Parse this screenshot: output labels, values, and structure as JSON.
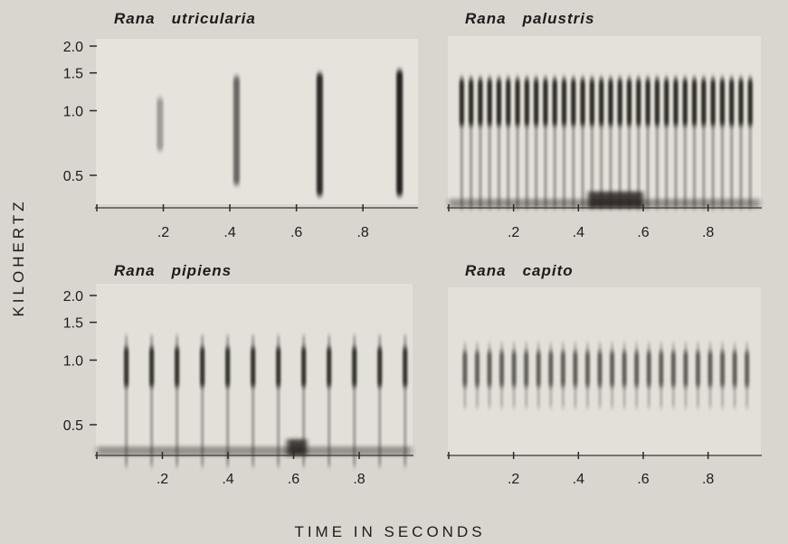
{
  "figure": {
    "ylabel": "KILOHERTZ",
    "xlabel": "TIME IN SECONDS"
  },
  "chart_data": [
    {
      "type": "heatmap",
      "title_word1": "Rana",
      "title_word2": "utricularia",
      "xlim": [
        0,
        0.96
      ],
      "ylim": [
        0.3,
        2.2
      ],
      "x_ticks": [
        0.2,
        0.4,
        0.6,
        0.8
      ],
      "x_tick_labels": [
        ".2",
        ".4",
        ".6",
        ".8"
      ],
      "y_ticks": [
        0.5,
        1.0,
        1.5,
        2.0
      ],
      "y_tick_labels": [
        "0.5",
        "1.0",
        "1.5",
        "2.0"
      ],
      "pulses": [
        {
          "t": 0.19,
          "f_low": 0.65,
          "f_high": 1.15,
          "intensity": 0.35
        },
        {
          "t": 0.42,
          "f_low": 0.45,
          "f_high": 1.45,
          "intensity": 0.6
        },
        {
          "t": 0.67,
          "f_low": 0.4,
          "f_high": 1.5,
          "intensity": 0.9
        },
        {
          "t": 0.91,
          "f_low": 0.4,
          "f_high": 1.55,
          "intensity": 0.95
        }
      ]
    },
    {
      "type": "heatmap",
      "title_word1": "Rana",
      "title_word2": "palustris",
      "xlim": [
        0,
        0.96
      ],
      "ylim": [
        0.3,
        2.2
      ],
      "x_ticks": [
        0.2,
        0.4,
        0.6,
        0.8
      ],
      "x_tick_labels": [
        ".2",
        ".4",
        ".6",
        ".8"
      ],
      "y_ticks": [],
      "y_tick_labels": [],
      "pulse_train": {
        "start": 0.04,
        "end": 0.93,
        "count": 32,
        "f_low": 0.35,
        "f_high": 1.45,
        "band_low": 0.85,
        "band_high": 1.4,
        "intensity": 0.85
      },
      "noise_floor": {
        "from": 0.0,
        "to": 0.96,
        "blob_from": 0.43,
        "blob_to": 0.6
      }
    },
    {
      "type": "heatmap",
      "title_word1": "Rana",
      "title_word2": "pipiens",
      "xlim": [
        0,
        0.96
      ],
      "ylim": [
        0.3,
        2.2
      ],
      "x_ticks": [
        0.2,
        0.4,
        0.6,
        0.8
      ],
      "x_tick_labels": [
        ".2",
        ".4",
        ".6",
        ".8"
      ],
      "y_ticks": [
        0.5,
        1.0,
        1.5,
        2.0
      ],
      "y_tick_labels": [
        "0.5",
        "1.0",
        "1.5",
        "2.0"
      ],
      "pulse_train": {
        "start": 0.09,
        "end": 0.94,
        "count": 12,
        "f_low": 0.32,
        "f_high": 1.3,
        "band_low": 0.75,
        "band_high": 1.15,
        "intensity": 0.8
      },
      "noise_floor": {
        "from": 0.0,
        "to": 0.96,
        "blob_from": 0.58,
        "blob_to": 0.64
      }
    },
    {
      "type": "heatmap",
      "title_word1": "Rana",
      "title_word2": "capito",
      "xlim": [
        0,
        0.96
      ],
      "ylim": [
        0.3,
        2.2
      ],
      "x_ticks": [
        0.2,
        0.4,
        0.6,
        0.8
      ],
      "x_tick_labels": [
        ".2",
        ".4",
        ".6",
        ".8"
      ],
      "y_ticks": [],
      "y_tick_labels": [],
      "pulse_train": {
        "start": 0.05,
        "end": 0.92,
        "count": 24,
        "f_low": 0.6,
        "f_high": 1.2,
        "band_low": 0.75,
        "band_high": 1.1,
        "intensity": 0.55
      }
    }
  ]
}
